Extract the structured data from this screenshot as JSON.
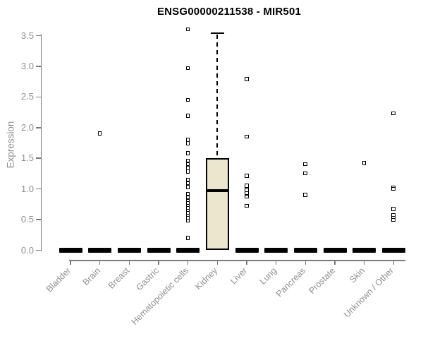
{
  "title": "ENSG00000211538 - MIR501",
  "chart_data": {
    "type": "box",
    "title": "ENSG00000211538 - MIR501",
    "xlabel": "",
    "ylabel": "Expression",
    "ylim": [
      0,
      3.5
    ],
    "yticks": [
      "0.0",
      "0.5",
      "1.0",
      "1.5",
      "2.0",
      "2.5",
      "3.0",
      "3.5"
    ],
    "grid": false,
    "legend": "none",
    "categories": [
      "Bladder",
      "Brain",
      "Breast",
      "Gastric",
      "Hematopoietic cells",
      "Kidney",
      "Liver",
      "Lung",
      "Pancreas",
      "Prostate",
      "Skin",
      "Unknown / Other"
    ],
    "boxes": [
      {
        "category": "Bladder",
        "q1": 0,
        "median": 0,
        "q3": 0,
        "whisker_low": 0,
        "whisker_high": 0,
        "outliers": []
      },
      {
        "category": "Brain",
        "q1": 0,
        "median": 0,
        "q3": 0,
        "whisker_low": 0,
        "whisker_high": 0,
        "outliers": [
          1.9
        ]
      },
      {
        "category": "Breast",
        "q1": 0,
        "median": 0,
        "q3": 0,
        "whisker_low": 0,
        "whisker_high": 0,
        "outliers": []
      },
      {
        "category": "Gastric",
        "q1": 0,
        "median": 0,
        "q3": 0,
        "whisker_low": 0,
        "whisker_high": 0,
        "outliers": []
      },
      {
        "category": "Hematopoietic cells",
        "q1": 0,
        "median": 0,
        "q3": 0,
        "whisker_low": 0,
        "whisker_high": 0,
        "outliers": [
          3.6,
          2.97,
          2.45,
          2.19,
          1.8,
          1.74,
          1.58,
          1.46,
          1.4,
          1.34,
          1.28,
          1.15,
          1.09,
          1.03,
          0.92,
          0.86,
          0.8,
          0.76,
          0.72,
          0.68,
          0.64,
          0.6,
          0.56,
          0.52,
          0.48,
          0.2
        ]
      },
      {
        "category": "Kidney",
        "q1": 0,
        "median": 0.97,
        "q3": 1.5,
        "whisker_low": 0,
        "whisker_high": 3.54,
        "outliers": []
      },
      {
        "category": "Liver",
        "q1": 0,
        "median": 0,
        "q3": 0,
        "whisker_low": 0,
        "whisker_high": 0,
        "outliers": [
          2.79,
          1.85,
          1.21,
          1.05,
          0.98,
          0.93,
          0.87,
          0.72
        ]
      },
      {
        "category": "Lung",
        "q1": 0,
        "median": 0,
        "q3": 0,
        "whisker_low": 0,
        "whisker_high": 0,
        "outliers": []
      },
      {
        "category": "Pancreas",
        "q1": 0,
        "median": 0,
        "q3": 0,
        "whisker_low": 0,
        "whisker_high": 0,
        "outliers": [
          1.4,
          1.25,
          0.9
        ]
      },
      {
        "category": "Prostate",
        "q1": 0,
        "median": 0,
        "q3": 0,
        "whisker_low": 0,
        "whisker_high": 0,
        "outliers": []
      },
      {
        "category": "Skin",
        "q1": 0,
        "median": 0,
        "q3": 0,
        "whisker_low": 0,
        "whisker_high": 0,
        "outliers": [
          1.42
        ]
      },
      {
        "category": "Unknown / Other",
        "q1": 0,
        "median": 0,
        "q3": 0,
        "whisker_low": 0,
        "whisker_high": 0,
        "outliers": [
          2.23,
          1.02,
          1.0,
          0.67,
          0.57,
          0.52,
          0.49
        ]
      }
    ]
  },
  "style": {
    "box_fill": "#ece6ce",
    "box_border": "#000000",
    "median_color": "#000000",
    "point_color": "#000000",
    "axis_color": "#7a7a7a",
    "tick_label_color": "#8f8f8f",
    "title_color": "#000000",
    "background": "#ffffff"
  }
}
